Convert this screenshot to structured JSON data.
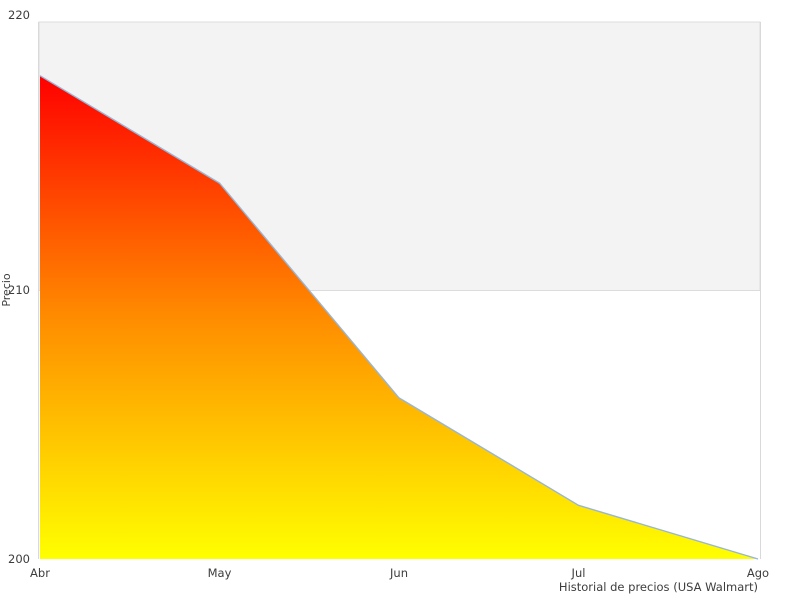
{
  "chart_data": {
    "type": "area",
    "x": [
      "Abr",
      "May",
      "Jun",
      "Jul",
      "Ago"
    ],
    "values": [
      218,
      214,
      206,
      202,
      200
    ],
    "title": "",
    "xlabel": "",
    "ylabel": "Precio",
    "caption": "Historial de precios (USA Walmart)",
    "ylim": [
      200,
      220
    ],
    "yticks": [
      220,
      210,
      200
    ],
    "grid": false,
    "legend": "none",
    "band": {
      "from": 210,
      "to": 220,
      "fill": "#f3f3f3",
      "border": "#dcdcdc"
    },
    "colors": {
      "area_gradient_top": "#ff0000",
      "area_gradient_mid": "#ff8c00",
      "area_gradient_bottom": "#ffff00",
      "line": "#97b6d8",
      "axis_text": "#3d3d3d",
      "plot_border": "#d9d9d9",
      "background": "#ffffff"
    }
  }
}
